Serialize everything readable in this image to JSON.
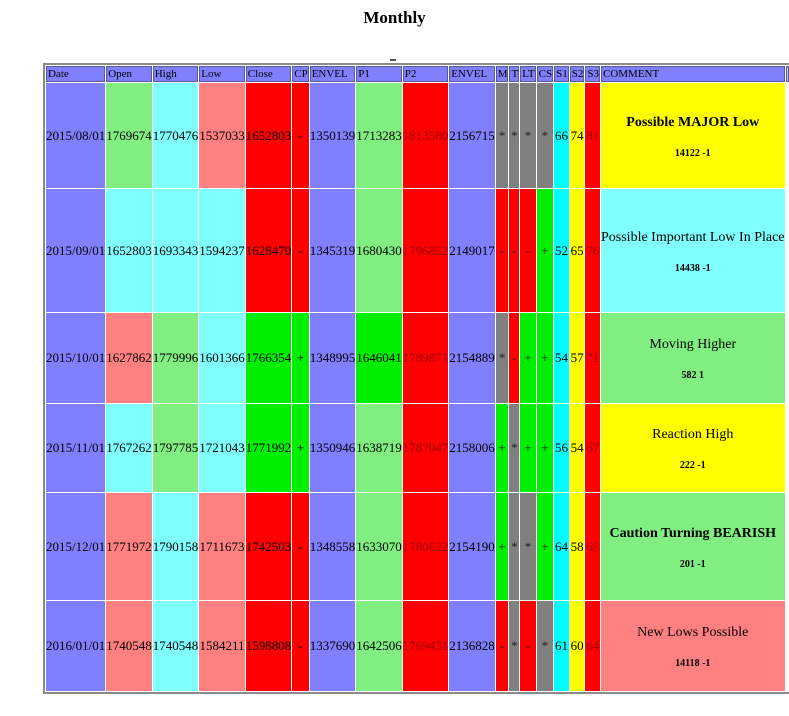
{
  "page": {
    "title": "Monthly"
  },
  "colors": {
    "blue": "#8080ff",
    "lightgreen": "#80ee80",
    "cyan": "#80ffff",
    "salmon": "#ff8080",
    "red": "#ff0000",
    "green": "#00ee00",
    "gray": "#808080",
    "aqua": "#00ffff",
    "yellow": "#ffff00",
    "darkred": "#aa0000"
  },
  "headers": [
    "Date",
    "Open",
    "High",
    "Low",
    "Close",
    "CP",
    "ENVEL",
    "P1",
    "P2",
    "ENVEL",
    "M",
    "T",
    "LT",
    "CS",
    "S1",
    "S2",
    "S3",
    "COMMENT"
  ],
  "rows": [
    {
      "date": "2015/08/01",
      "open": "1769674",
      "high": "1770476",
      "low": "1537033",
      "close": "1652803",
      "cp": "-",
      "envel1": "1350139",
      "p1": "1713283",
      "p2": "1813580",
      "envel2": "2156715",
      "m": "*",
      "t": "*",
      "lt": "*",
      "cs": "*",
      "s1": "66",
      "s2": "74",
      "s3": "81",
      "comment": "Possible MAJOR Low",
      "comment_num": "14122 -1",
      "comment_bold": true,
      "cols": [
        "blue",
        "lightgreen",
        "cyan",
        "salmon",
        "red",
        "red",
        "blue",
        "lightgreen",
        "red",
        "blue",
        "gray",
        "gray",
        "gray",
        "gray",
        "aqua",
        "yellow",
        "red",
        "yellow"
      ]
    },
    {
      "date": "2015/09/01",
      "open": "1652803",
      "high": "1693343",
      "low": "1594237",
      "close": "1628470",
      "cp": "-",
      "envel1": "1345319",
      "p1": "1680430",
      "p2": "1796852",
      "envel2": "2149017",
      "m": "-",
      "t": "-",
      "lt": "-",
      "cs": "+",
      "s1": "52",
      "s2": "65",
      "s3": "76",
      "comment": "Possible Important Low In Place",
      "comment_num": "14438 -1",
      "comment_bold": false,
      "cols": [
        "blue",
        "cyan",
        "cyan",
        "cyan",
        "red",
        "red",
        "blue",
        "lightgreen",
        "red",
        "blue",
        "red",
        "red",
        "red",
        "green",
        "aqua",
        "yellow",
        "red",
        "cyan"
      ]
    },
    {
      "date": "2015/10/01",
      "open": "1627862",
      "high": "1779996",
      "low": "1601366",
      "close": "1766354",
      "cp": "+",
      "envel1": "1348995",
      "p1": "1646041",
      "p2": "1789871",
      "envel2": "2154889",
      "m": "*",
      "t": "-",
      "lt": "+",
      "cs": "+",
      "s1": "54",
      "s2": "57",
      "s3": "71",
      "comment": "Moving Higher",
      "comment_num": "582 1",
      "comment_bold": false,
      "cols": [
        "blue",
        "salmon",
        "lightgreen",
        "cyan",
        "green",
        "green",
        "blue",
        "green",
        "red",
        "blue",
        "gray",
        "red",
        "green",
        "green",
        "aqua",
        "yellow",
        "red",
        "lightgreen"
      ]
    },
    {
      "date": "2015/11/01",
      "open": "1767262",
      "high": "1797785",
      "low": "1721043",
      "close": "1771992",
      "cp": "+",
      "envel1": "1350946",
      "p1": "1638719",
      "p2": "1787047",
      "envel2": "2158006",
      "m": "+",
      "t": "*",
      "lt": "+",
      "cs": "+",
      "s1": "56",
      "s2": "54",
      "s3": "67",
      "comment": "Reaction High",
      "comment_num": "222 -1",
      "comment_bold": false,
      "cols": [
        "blue",
        "cyan",
        "lightgreen",
        "cyan",
        "green",
        "green",
        "blue",
        "lightgreen",
        "red",
        "blue",
        "green",
        "gray",
        "green",
        "green",
        "aqua",
        "yellow",
        "red",
        "yellow"
      ]
    },
    {
      "date": "2015/12/01",
      "open": "1771972",
      "high": "1790158",
      "low": "1711673",
      "close": "1742503",
      "cp": "-",
      "envel1": "1348558",
      "p1": "1633070",
      "p2": "1780622",
      "envel2": "2154190",
      "m": "+",
      "t": "*",
      "lt": "*",
      "cs": "+",
      "s1": "64",
      "s2": "58",
      "s3": "65",
      "comment": "Caution Turning BEARISH",
      "comment_num": "201 -1",
      "comment_bold": true,
      "cols": [
        "blue",
        "salmon",
        "cyan",
        "salmon",
        "red",
        "red",
        "blue",
        "lightgreen",
        "red",
        "blue",
        "green",
        "gray",
        "gray",
        "green",
        "aqua",
        "yellow",
        "red",
        "lightgreen"
      ]
    },
    {
      "date": "2016/01/01",
      "open": "1740548",
      "high": "1740548",
      "low": "1584211",
      "close": "1598808",
      "cp": "-",
      "envel1": "1337690",
      "p1": "1642506",
      "p2": "1769431",
      "envel2": "2136828",
      "m": "-",
      "t": "*",
      "lt": "-",
      "cs": "*",
      "s1": "61",
      "s2": "60",
      "s3": "64",
      "comment": "New Lows Possible",
      "comment_num": "14118 -1",
      "comment_bold": false,
      "cols": [
        "blue",
        "salmon",
        "cyan",
        "salmon",
        "red",
        "red",
        "blue",
        "lightgreen",
        "red",
        "blue",
        "red",
        "gray",
        "red",
        "gray",
        "aqua",
        "yellow",
        "red",
        "salmon"
      ]
    }
  ]
}
